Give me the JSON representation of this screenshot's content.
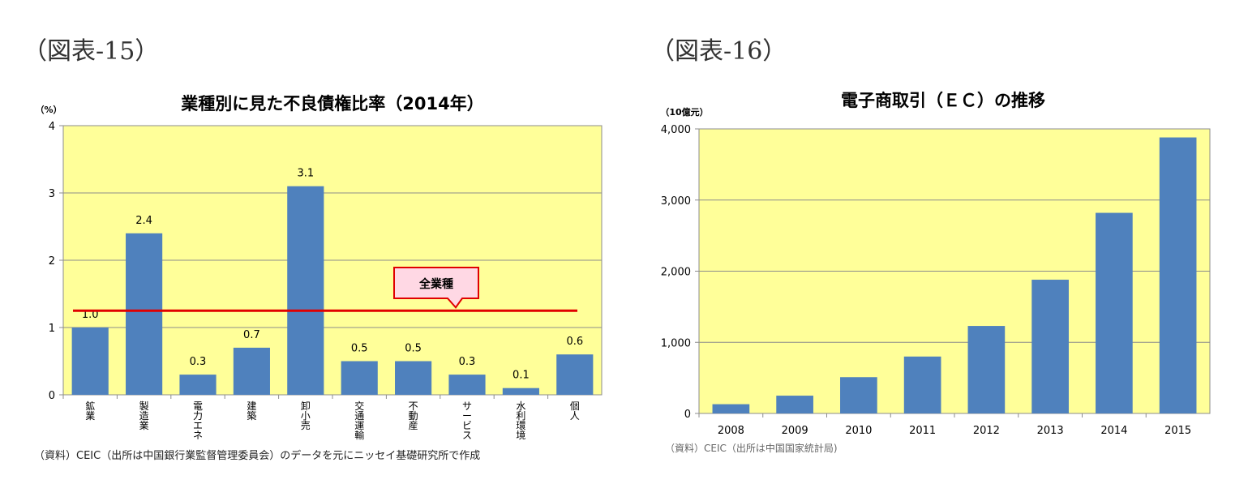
{
  "figure_labels": [
    "（図表-15）",
    "（図表-16）"
  ],
  "sources": [
    "（資料）CEIC（出所は中国銀行業監督管理委員会）のデータを元にニッセイ基礎研究所で作成",
    "（資料）CEIC（出所は中国国家統計局)"
  ],
  "colors": {
    "bar": "#4F81BD",
    "plot_bg": "#FFFF99",
    "avg_line": "#E00000",
    "callout_bg": "#FFD8E4",
    "callout_border": "#E00000"
  },
  "chart_data": [
    {
      "type": "bar",
      "title": "業種別に見た不良債権比率（2014年）",
      "ylabel": "（%）",
      "ylim": [
        0,
        4
      ],
      "yticks": [
        "0",
        "1",
        "2",
        "3",
        "4"
      ],
      "categories": [
        "鉱業",
        "製造業",
        "電力エネ",
        "建築",
        "卸小売",
        "交通運輸",
        "不動産",
        "サービス",
        "水利環境",
        "個人"
      ],
      "values": [
        1.0,
        2.4,
        0.3,
        0.7,
        3.1,
        0.5,
        0.5,
        0.3,
        0.1,
        0.6
      ],
      "value_labels": [
        "1.0",
        "2.4",
        "0.3",
        "0.7",
        "3.1",
        "0.5",
        "0.5",
        "0.3",
        "0.1",
        "0.6"
      ],
      "reference_line": {
        "name": "全業種",
        "value": 1.25
      },
      "grid": true
    },
    {
      "type": "bar",
      "title": "電子商取引（ＥＣ）の推移",
      "ylabel": "（10億元）",
      "ylim": [
        0,
        4000
      ],
      "yticks": [
        "0",
        "1,000",
        "2,000",
        "3,000",
        "4,000"
      ],
      "categories": [
        "2008",
        "2009",
        "2010",
        "2011",
        "2012",
        "2013",
        "2014",
        "2015"
      ],
      "values": [
        130,
        250,
        510,
        800,
        1230,
        1880,
        2820,
        3880
      ],
      "grid": true
    }
  ]
}
